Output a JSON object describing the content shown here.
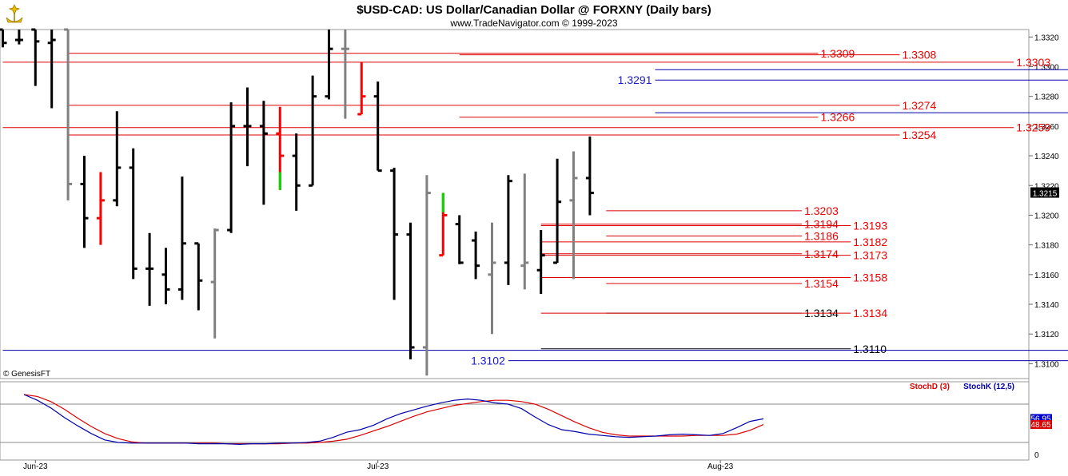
{
  "header": {
    "title": "$USD-CAD:  US Dollar/Canadian Dollar @ FORXNY  (Daily bars)",
    "subtitle": "www.TradeNavigator.com © 1999-2023",
    "watermark": "© GenesisFT"
  },
  "colors": {
    "up_bar": "#000000",
    "down_bar": "#808080",
    "accent_red": "#ff0000",
    "accent_green": "#00dd00",
    "res_line": "#dd0000",
    "blue_line": "#0000aa",
    "stoch_d": "#dd0000",
    "stoch_k": "#0000aa"
  },
  "chart_data": [
    {
      "type": "ohlc",
      "ylim": [
        1.309,
        1.3325
      ],
      "y_ticks": [
        "1.3320",
        "1.3300",
        "1.3280",
        "1.3260",
        "1.3240",
        "1.3220",
        "1.3200",
        "1.3180",
        "1.3160",
        "1.3140",
        "1.3120",
        "1.3100"
      ],
      "x_labels": [
        {
          "label": "Jun-23",
          "bar": 0
        },
        {
          "label": "Jul-23",
          "bar": 21
        },
        {
          "label": "Aug-23",
          "bar": 42
        }
      ],
      "last_price": "1.3215",
      "bars": [
        {
          "o": 1.3325,
          "h": 1.3325,
          "l": 1.3313,
          "c": 1.3316,
          "color": "black"
        },
        {
          "o": 1.3318,
          "h": 1.3325,
          "l": 1.3315,
          "c": 1.3318,
          "color": "black"
        },
        {
          "o": 1.3325,
          "h": 1.3325,
          "l": 1.3287,
          "c": 1.3317,
          "color": "black"
        },
        {
          "o": 1.3316,
          "h": 1.3325,
          "l": 1.3272,
          "c": 1.3318,
          "color": "black"
        },
        {
          "o": 1.3325,
          "h": 1.3325,
          "l": 1.321,
          "c": 1.3221,
          "color": "gray"
        },
        {
          "o": 1.3221,
          "h": 1.324,
          "l": 1.3178,
          "c": 1.3198,
          "color": "black"
        },
        {
          "o": 1.3198,
          "h": 1.3229,
          "l": 1.318,
          "c": 1.321,
          "color": "red"
        },
        {
          "o": 1.321,
          "h": 1.327,
          "l": 1.3206,
          "c": 1.3232,
          "color": "black"
        },
        {
          "o": 1.3232,
          "h": 1.3245,
          "l": 1.3157,
          "c": 1.3164,
          "color": "black"
        },
        {
          "o": 1.3164,
          "h": 1.3188,
          "l": 1.3139,
          "c": 1.3164,
          "color": "black"
        },
        {
          "o": 1.316,
          "h": 1.3178,
          "l": 1.314,
          "c": 1.315,
          "color": "black"
        },
        {
          "o": 1.315,
          "h": 1.3226,
          "l": 1.3143,
          "c": 1.3181,
          "color": "black"
        },
        {
          "o": 1.3181,
          "h": 1.3181,
          "l": 1.3136,
          "c": 1.3156,
          "color": "black"
        },
        {
          "o": 1.3155,
          "h": 1.3191,
          "l": 1.3117,
          "c": 1.319,
          "color": "gray"
        },
        {
          "o": 1.319,
          "h": 1.3276,
          "l": 1.3188,
          "c": 1.326,
          "color": "black"
        },
        {
          "o": 1.326,
          "h": 1.3286,
          "l": 1.3233,
          "c": 1.326,
          "color": "black"
        },
        {
          "o": 1.326,
          "h": 1.3277,
          "l": 1.3207,
          "c": 1.3255,
          "color": "black"
        },
        {
          "o": 1.3255,
          "h": 1.3273,
          "l": 1.3217,
          "c": 1.324,
          "color": "red"
        },
        {
          "o": 1.324,
          "h": 1.3255,
          "l": 1.3203,
          "c": 1.322,
          "color": "black"
        },
        {
          "o": 1.322,
          "h": 1.3294,
          "l": 1.322,
          "c": 1.328,
          "color": "black"
        },
        {
          "o": 1.328,
          "h": 1.3325,
          "l": 1.3278,
          "c": 1.3312,
          "color": "black"
        },
        {
          "o": 1.3312,
          "h": 1.3325,
          "l": 1.3265,
          "c": 1.3312,
          "color": "gray"
        },
        {
          "o": 1.3268,
          "h": 1.3303,
          "l": 1.3268,
          "c": 1.328,
          "color": "red"
        },
        {
          "o": 1.328,
          "h": 1.329,
          "l": 1.323,
          "c": 1.323,
          "color": "black"
        },
        {
          "o": 1.323,
          "h": 1.3232,
          "l": 1.3143,
          "c": 1.3187,
          "color": "black"
        },
        {
          "o": 1.3187,
          "h": 1.3195,
          "l": 1.3103,
          "c": 1.3111,
          "color": "black"
        },
        {
          "o": 1.3111,
          "h": 1.3227,
          "l": 1.3092,
          "c": 1.3215,
          "color": "gray"
        },
        {
          "o": 1.3173,
          "h": 1.3215,
          "l": 1.3173,
          "c": 1.32,
          "color": "red"
        },
        {
          "o": 1.3194,
          "h": 1.32,
          "l": 1.3167,
          "c": 1.3168,
          "color": "black"
        },
        {
          "o": 1.3183,
          "h": 1.3189,
          "l": 1.3157,
          "c": 1.3166,
          "color": "black"
        },
        {
          "o": 1.316,
          "h": 1.3195,
          "l": 1.312,
          "c": 1.3168,
          "color": "gray"
        },
        {
          "o": 1.3168,
          "h": 1.3227,
          "l": 1.3153,
          "c": 1.3223,
          "color": "black"
        },
        {
          "o": 1.3166,
          "h": 1.3228,
          "l": 1.315,
          "c": 1.3168,
          "color": "gray"
        },
        {
          "o": 1.3163,
          "h": 1.319,
          "l": 1.3147,
          "c": 1.3173,
          "color": "black"
        },
        {
          "o": 1.3168,
          "h": 1.3238,
          "l": 1.3168,
          "c": 1.3209,
          "color": "black"
        },
        {
          "o": 1.321,
          "h": 1.3243,
          "l": 1.3157,
          "c": 1.3225,
          "color": "gray"
        },
        {
          "o": 1.3225,
          "h": 1.3253,
          "l": 1.32,
          "c": 1.3215,
          "color": "black"
        }
      ],
      "levels": [
        {
          "value": "1.3309",
          "y": 1.3309,
          "color": "red",
          "x_from": 4,
          "x_to": 50,
          "label_bar": 50
        },
        {
          "value": "1.3308",
          "y": 1.3308,
          "color": "red",
          "x_from": 28,
          "x_to": 55,
          "label_bar": 55
        },
        {
          "value": "1.3303",
          "y": 1.3303,
          "color": "red",
          "x_from": 0,
          "x_to": 62,
          "label_bar": 62
        },
        {
          "value": "1.3298",
          "y": 1.3298,
          "color": "blue",
          "x_from": 40,
          "x_to": 66,
          "label_bar": 66
        },
        {
          "value": "1.3291",
          "y": 1.3291,
          "color": "blue",
          "x_from": 40,
          "x_to": 66,
          "label_bar": 40,
          "label_left": true
        },
        {
          "value": "1.3274",
          "y": 1.3274,
          "color": "red",
          "x_from": 4,
          "x_to": 55,
          "label_bar": 55
        },
        {
          "value": "1.3269",
          "y": 1.3269,
          "color": "blue",
          "x_from": 40,
          "x_to": 66,
          "label_bar": 66
        },
        {
          "value": "1.3266",
          "y": 1.3266,
          "color": "red",
          "x_from": 28,
          "x_to": 50,
          "label_bar": 50
        },
        {
          "value": "1.3259",
          "y": 1.3259,
          "color": "red",
          "x_from": 0,
          "x_to": 62,
          "label_bar": 62
        },
        {
          "value": "1.3254",
          "y": 1.3254,
          "color": "red",
          "x_from": 4,
          "x_to": 55,
          "label_bar": 55
        },
        {
          "value": "1.3203",
          "y": 1.3203,
          "color": "red",
          "x_from": 37,
          "x_to": 49,
          "label_bar": 49
        },
        {
          "value": "1.3194",
          "y": 1.3194,
          "color": "red",
          "x_from": 33,
          "x_to": 49,
          "label_bar": 49
        },
        {
          "value": "1.3193",
          "y": 1.3193,
          "color": "red",
          "x_from": 33,
          "x_to": 52,
          "label_bar": 52
        },
        {
          "value": "1.3186",
          "y": 1.3186,
          "color": "red",
          "x_from": 37,
          "x_to": 49,
          "label_bar": 49
        },
        {
          "value": "1.3182",
          "y": 1.3182,
          "color": "red",
          "x_from": 33,
          "x_to": 52,
          "label_bar": 52
        },
        {
          "value": "1.3174",
          "y": 1.3174,
          "color": "red",
          "x_from": 33,
          "x_to": 49,
          "label_bar": 49
        },
        {
          "value": "1.3173",
          "y": 1.3173,
          "color": "red",
          "x_from": 33,
          "x_to": 52,
          "label_bar": 52
        },
        {
          "value": "1.3158",
          "y": 1.3158,
          "color": "red",
          "x_from": 33,
          "x_to": 52,
          "label_bar": 52
        },
        {
          "value": "1.3154",
          "y": 1.3154,
          "color": "red",
          "x_from": 37,
          "x_to": 49,
          "label_bar": 49
        },
        {
          "value": "1.3134",
          "y": 1.3134,
          "color": "black",
          "x_from": 37,
          "x_to": 49,
          "label_bar": 49
        },
        {
          "value": "1.3134",
          "y": 1.3134,
          "color": "red",
          "x_from": 33,
          "x_to": 52,
          "label_bar": 52
        },
        {
          "value": "1.3110",
          "y": 1.311,
          "color": "black",
          "x_from": 33,
          "x_to": 52,
          "label_bar": 52
        },
        {
          "value": "1.3109",
          "y": 1.3109,
          "color": "blue",
          "x_from": 0,
          "x_to": 66,
          "label_bar": 66
        },
        {
          "value": "1.3102",
          "y": 1.3102,
          "color": "blue",
          "x_from": 31,
          "x_to": 66,
          "label_bar": 31,
          "label_left": true
        }
      ]
    },
    {
      "type": "line",
      "ylim": [
        0,
        100
      ],
      "y_ticks": [
        "0"
      ],
      "grid_lines": [
        20,
        80
      ],
      "legend": [
        "StochD (3)",
        "StochK (12,5)"
      ],
      "last_values": {
        "k": "56.95",
        "d": "48.65"
      },
      "series": [
        {
          "name": "StochD (3)",
          "color": "red",
          "values": [
            95,
            92,
            84,
            72,
            58,
            45,
            34,
            26,
            21,
            19,
            19,
            19,
            19,
            19,
            19,
            18,
            18,
            18,
            18,
            18,
            19,
            19,
            20,
            22,
            25,
            31,
            38,
            45,
            53,
            61,
            68,
            73,
            78,
            81,
            84,
            86,
            86,
            84,
            80,
            72,
            62,
            52,
            43,
            36,
            32,
            30,
            30,
            30,
            30,
            30,
            31,
            31,
            31,
            33,
            39,
            48
          ]
        },
        {
          "name": "StochK (12,5)",
          "color": "blue",
          "values": [
            95,
            86,
            74,
            59,
            46,
            34,
            24,
            20,
            19,
            19,
            19,
            19,
            19,
            18,
            18,
            18,
            17,
            18,
            18,
            19,
            19,
            20,
            22,
            28,
            36,
            40,
            47,
            57,
            65,
            71,
            77,
            82,
            86,
            88,
            86,
            82,
            80,
            73,
            60,
            48,
            40,
            37,
            33,
            31,
            29,
            28,
            29,
            30,
            32,
            33,
            32,
            31,
            34,
            43,
            53,
            57
          ]
        }
      ]
    }
  ]
}
